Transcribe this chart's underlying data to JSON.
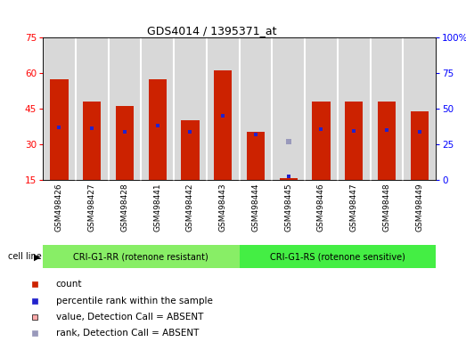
{
  "title": "GDS4014 / 1395371_at",
  "samples": [
    "GSM498426",
    "GSM498427",
    "GSM498428",
    "GSM498441",
    "GSM498442",
    "GSM498443",
    "GSM498444",
    "GSM498445",
    "GSM498446",
    "GSM498447",
    "GSM498448",
    "GSM498449"
  ],
  "counts": [
    57.5,
    48.0,
    46.0,
    57.5,
    40.0,
    61.0,
    35.0,
    15.5,
    48.0,
    48.0,
    48.0,
    44.0
  ],
  "percentile_ranks": [
    37.0,
    36.0,
    33.5,
    38.0,
    33.5,
    45.0,
    32.0,
    2.0,
    35.5,
    34.5,
    35.0,
    33.5
  ],
  "absent_rank": [
    null,
    null,
    null,
    null,
    null,
    null,
    null,
    27.0,
    null,
    null,
    null,
    null
  ],
  "group1_label": "CRI-G1-RR (rotenone resistant)",
  "group2_label": "CRI-G1-RS (rotenone sensitive)",
  "cell_line_label": "cell line",
  "ylim_left": [
    15,
    75
  ],
  "ylim_right": [
    0,
    100
  ],
  "yticks_left": [
    15,
    30,
    45,
    60,
    75
  ],
  "yticks_right": [
    0,
    25,
    50,
    75,
    100
  ],
  "ytick_labels_right": [
    "0",
    "25",
    "50",
    "75",
    "100%"
  ],
  "bar_color": "#cc2200",
  "percentile_color": "#2222cc",
  "absent_rank_color": "#9999bb",
  "absent_value_color": "#ffaaaa",
  "bg_color": "#d8d8d8",
  "group1_color": "#88ee66",
  "group2_color": "#44ee44",
  "bar_width": 0.55,
  "n_group1": 6,
  "n_group2": 6
}
